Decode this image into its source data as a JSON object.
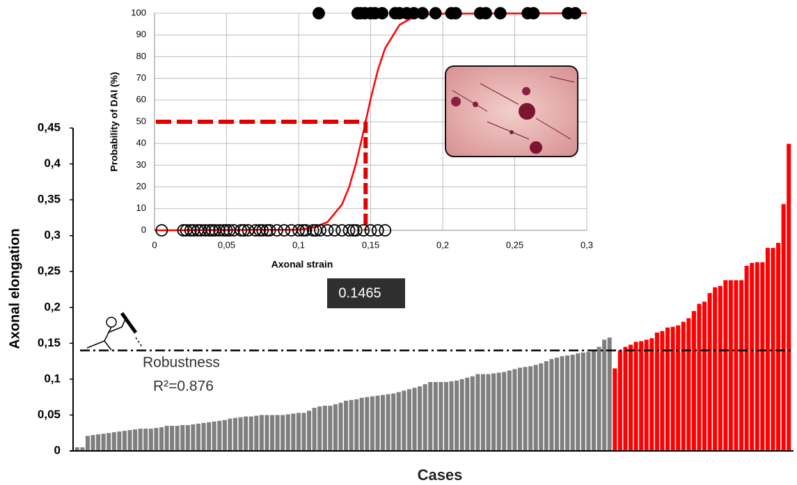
{
  "chart_data": [
    {
      "type": "bar",
      "xlabel": "Cases",
      "ylabel": "Axonal elongation",
      "ylim": [
        0,
        0.45
      ],
      "yticks": [
        0,
        {
          "value": 0.05,
          "label": "0,05"
        },
        {
          "value": 0.1,
          "label": "0,1"
        },
        {
          "value": 0.15,
          "label": "0,15"
        },
        {
          "value": 0.2,
          "label": "0,2"
        },
        {
          "value": 0.25,
          "label": "0,25"
        },
        {
          "value": 0.3,
          "label": "0,3"
        },
        {
          "value": 0.35,
          "label": "0,35"
        },
        {
          "value": 0.4,
          "label": "0,4"
        },
        {
          "value": 0.45,
          "label": "0,45"
        }
      ],
      "series": [
        {
          "color": "#7f7f7f",
          "values": [
            0.005,
            0.005,
            0.021,
            0.022,
            0.023,
            0.024,
            0.025,
            0.026,
            0.027,
            0.028,
            0.029,
            0.03,
            0.031,
            0.031,
            0.031,
            0.032,
            0.033,
            0.035,
            0.035,
            0.035,
            0.036,
            0.036,
            0.037,
            0.038,
            0.039,
            0.04,
            0.041,
            0.042,
            0.043,
            0.045,
            0.046,
            0.047,
            0.048,
            0.048,
            0.049,
            0.05,
            0.05,
            0.05,
            0.05,
            0.05,
            0.051,
            0.052,
            0.053,
            0.053,
            0.056,
            0.06,
            0.062,
            0.063,
            0.063,
            0.065,
            0.067,
            0.07,
            0.071,
            0.072,
            0.074,
            0.075,
            0.076,
            0.077,
            0.078,
            0.079,
            0.08,
            0.082,
            0.084,
            0.086,
            0.088,
            0.09,
            0.093,
            0.096,
            0.096,
            0.096,
            0.096,
            0.097,
            0.098,
            0.1,
            0.102,
            0.104,
            0.107,
            0.107,
            0.107,
            0.108,
            0.109,
            0.11,
            0.112,
            0.114,
            0.116,
            0.117,
            0.118,
            0.12,
            0.122,
            0.125,
            0.128,
            0.13,
            0.132,
            0.133,
            0.134,
            0.136,
            0.137,
            0.138,
            0.14,
            0.145,
            0.155,
            0.158
          ]
        },
        {
          "color": "#ff0000",
          "values": [
            0.115,
            0.14,
            0.145,
            0.148,
            0.152,
            0.153,
            0.155,
            0.157,
            0.165,
            0.167,
            0.172,
            0.173,
            0.175,
            0.18,
            0.185,
            0.195,
            0.205,
            0.208,
            0.22,
            0.228,
            0.23,
            0.238,
            0.238,
            0.238,
            0.238,
            0.258,
            0.262,
            0.263,
            0.263,
            0.283,
            0.283,
            0.29,
            0.344,
            0.428
          ]
        }
      ],
      "threshold": 0.14,
      "annotations": [
        "Robustness",
        "R²=0.876"
      ]
    },
    {
      "type": "scatter",
      "xlabel": "Axonal strain",
      "ylabel": "Probability of DAI (%)",
      "xlim": [
        0,
        0.3
      ],
      "ylim": [
        0,
        100
      ],
      "xticks": [
        0,
        {
          "value": 0.05,
          "label": "0,05"
        },
        {
          "value": 0.1,
          "label": "0,1"
        },
        {
          "value": 0.15,
          "label": "0,15"
        },
        {
          "value": 0.2,
          "label": "0,2"
        },
        {
          "value": 0.25,
          "label": "0,25"
        },
        {
          "value": 0.3,
          "label": "0,3"
        }
      ],
      "yticks": [
        0,
        10,
        20,
        30,
        40,
        50,
        60,
        70,
        80,
        90,
        100
      ],
      "grid": true,
      "series": [
        {
          "color": "#000000",
          "filled": true,
          "x": [
            0.114,
            0.141,
            0.143,
            0.146,
            0.15,
            0.153,
            0.158,
            0.167,
            0.17,
            0.175,
            0.18,
            0.186,
            0.195,
            0.206,
            0.209,
            0.226,
            0.23,
            0.24,
            0.259,
            0.263,
            0.287,
            0.292
          ],
          "values": [
            100,
            100,
            100,
            100,
            100,
            100,
            100,
            100,
            100,
            100,
            100,
            100,
            100,
            100,
            100,
            100,
            100,
            100,
            100,
            100,
            100,
            100
          ]
        },
        {
          "color": "#000000",
          "filled": false,
          "x": [
            0.005,
            0.02,
            0.022,
            0.025,
            0.027,
            0.03,
            0.032,
            0.035,
            0.038,
            0.04,
            0.042,
            0.045,
            0.048,
            0.05,
            0.052,
            0.055,
            0.06,
            0.062,
            0.065,
            0.07,
            0.073,
            0.075,
            0.078,
            0.08,
            0.085,
            0.09,
            0.095,
            0.1,
            0.103,
            0.105,
            0.11,
            0.112,
            0.115,
            0.12,
            0.125,
            0.13,
            0.135,
            0.138,
            0.14,
            0.145,
            0.15,
            0.155,
            0.16
          ],
          "values": [
            0,
            0,
            0,
            0,
            0,
            0,
            0,
            0,
            0,
            0,
            0,
            0,
            0,
            0,
            0,
            0,
            0,
            0,
            0,
            0,
            0,
            0,
            0,
            0,
            0,
            0,
            0,
            0,
            0,
            0,
            0,
            0,
            0,
            0,
            0,
            0,
            0,
            0,
            0,
            0,
            0,
            0,
            0
          ]
        }
      ],
      "fit": {
        "color": "#ff0000",
        "x": [
          0,
          0.1,
          0.11,
          0.12,
          0.13,
          0.135,
          0.14,
          0.145,
          0.1465,
          0.15,
          0.155,
          0.16,
          0.17,
          0.18,
          0.19,
          0.2,
          0.3
        ],
        "values": [
          0,
          0.3,
          1.2,
          3.8,
          11.8,
          19.8,
          31.2,
          45.4,
          50,
          60.5,
          73.8,
          83.8,
          94.6,
          98.4,
          99.5,
          99.8,
          100
        ]
      },
      "cutoff": 0.1465,
      "cutoff_probability": 50
    }
  ]
}
